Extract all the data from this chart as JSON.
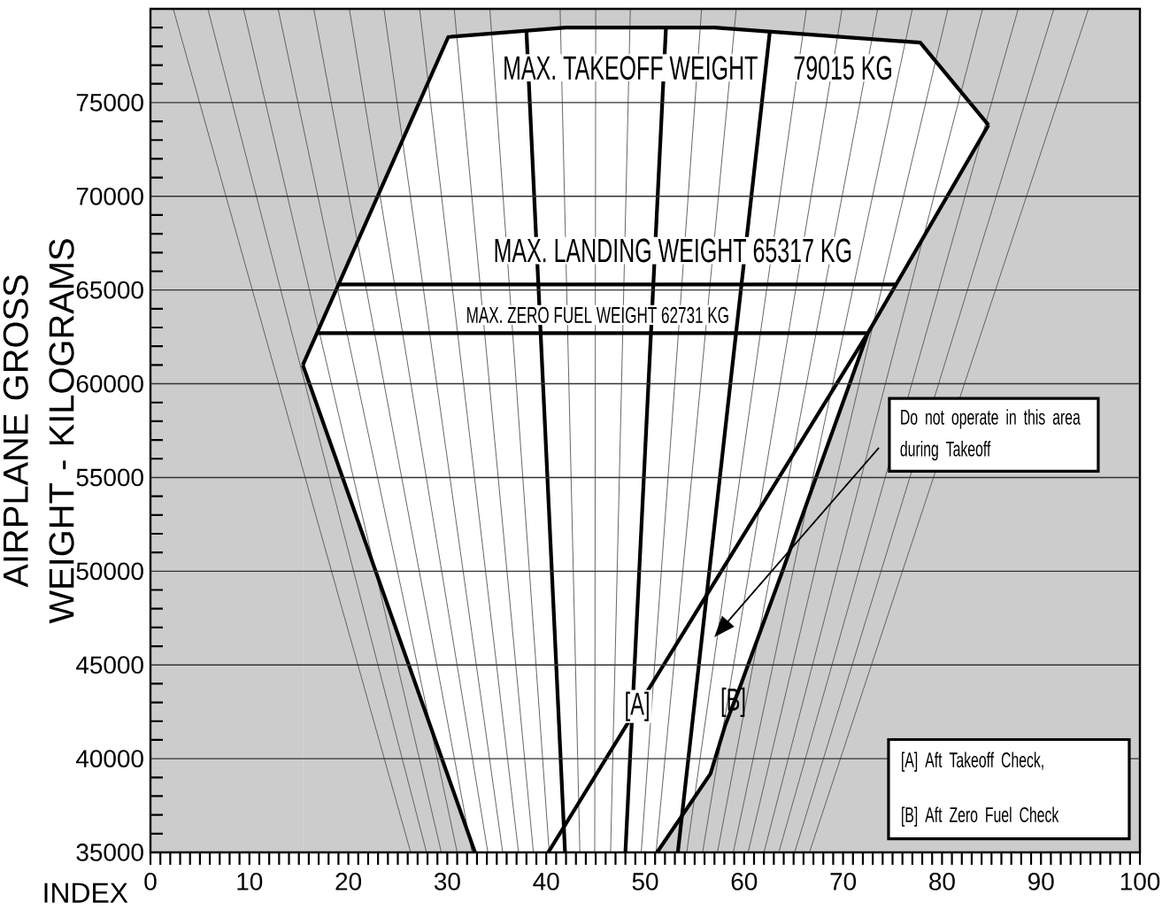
{
  "chart_data": {
    "type": "line",
    "xlabel": "INDEX",
    "ylabel": "AIRPLANE GROSS WEIGHT - KILOGRAMS",
    "xlim": [
      0,
      100
    ],
    "ylim": [
      35000,
      80000
    ],
    "xticks": [
      0,
      {
        "value": 1,
        "label": null
      },
      {
        "value": 2,
        "label": null
      },
      {
        "value": 3,
        "label": null
      },
      {
        "value": 4,
        "label": null
      },
      {
        "value": 5,
        "label": null
      },
      {
        "value": 6,
        "label": null
      },
      {
        "value": 7,
        "label": null
      },
      {
        "value": 8,
        "label": null
      },
      {
        "value": 9,
        "label": null
      },
      10,
      {
        "value": 11,
        "label": null
      },
      {
        "value": 12,
        "label": null
      },
      {
        "value": 13,
        "label": null
      },
      {
        "value": 14,
        "label": null
      },
      {
        "value": 15,
        "label": null
      },
      {
        "value": 16,
        "label": null
      },
      {
        "value": 17,
        "label": null
      },
      {
        "value": 18,
        "label": null
      },
      {
        "value": 19,
        "label": null
      },
      20,
      {
        "value": 21,
        "label": null
      },
      {
        "value": 22,
        "label": null
      },
      {
        "value": 23,
        "label": null
      },
      {
        "value": 24,
        "label": null
      },
      {
        "value": 25,
        "label": null
      },
      {
        "value": 26,
        "label": null
      },
      {
        "value": 27,
        "label": null
      },
      {
        "value": 28,
        "label": null
      },
      {
        "value": 29,
        "label": null
      },
      30,
      {
        "value": 31,
        "label": null
      },
      {
        "value": 32,
        "label": null
      },
      {
        "value": 33,
        "label": null
      },
      {
        "value": 34,
        "label": null
      },
      {
        "value": 35,
        "label": null
      },
      {
        "value": 36,
        "label": null
      },
      {
        "value": 37,
        "label": null
      },
      {
        "value": 38,
        "label": null
      },
      {
        "value": 39,
        "label": null
      },
      40,
      {
        "value": 41,
        "label": null
      },
      {
        "value": 42,
        "label": null
      },
      {
        "value": 43,
        "label": null
      },
      {
        "value": 44,
        "label": null
      },
      {
        "value": 45,
        "label": null
      },
      {
        "value": 46,
        "label": null
      },
      {
        "value": 47,
        "label": null
      },
      {
        "value": 48,
        "label": null
      },
      {
        "value": 49,
        "label": null
      },
      50,
      {
        "value": 51,
        "label": null
      },
      {
        "value": 52,
        "label": null
      },
      {
        "value": 53,
        "label": null
      },
      {
        "value": 54,
        "label": null
      },
      {
        "value": 55,
        "label": null
      },
      {
        "value": 56,
        "label": null
      },
      {
        "value": 57,
        "label": null
      },
      {
        "value": 58,
        "label": null
      },
      {
        "value": 59,
        "label": null
      },
      60,
      {
        "value": 61,
        "label": null
      },
      {
        "value": 62,
        "label": null
      },
      {
        "value": 63,
        "label": null
      },
      {
        "value": 64,
        "label": null
      },
      {
        "value": 65,
        "label": null
      },
      {
        "value": 66,
        "label": null
      },
      {
        "value": 67,
        "label": null
      },
      {
        "value": 68,
        "label": null
      },
      {
        "value": 69,
        "label": null
      },
      70,
      {
        "value": 71,
        "label": null
      },
      {
        "value": 72,
        "label": null
      },
      {
        "value": 73,
        "label": null
      },
      {
        "value": 74,
        "label": null
      },
      {
        "value": 75,
        "label": null
      },
      {
        "value": 76,
        "label": null
      },
      {
        "value": 77,
        "label": null
      },
      {
        "value": 78,
        "label": null
      },
      {
        "value": 79,
        "label": null
      },
      80,
      {
        "value": 81,
        "label": null
      },
      {
        "value": 82,
        "label": null
      },
      {
        "value": 83,
        "label": null
      },
      {
        "value": 84,
        "label": null
      },
      {
        "value": 85,
        "label": null
      },
      {
        "value": 86,
        "label": null
      },
      {
        "value": 87,
        "label": null
      },
      {
        "value": 88,
        "label": null
      },
      {
        "value": 89,
        "label": null
      },
      90,
      {
        "value": 91,
        "label": null
      },
      {
        "value": 92,
        "label": null
      },
      {
        "value": 93,
        "label": null
      },
      {
        "value": 94,
        "label": null
      },
      {
        "value": 95,
        "label": null
      },
      {
        "value": 96,
        "label": null
      },
      {
        "value": 97,
        "label": null
      },
      {
        "value": 98,
        "label": null
      },
      {
        "value": 99,
        "label": null
      },
      100
    ],
    "yticks": [
      35000,
      {
        "value": 36000,
        "label": null
      },
      {
        "value": 37000,
        "label": null
      },
      {
        "value": 38000,
        "label": null
      },
      {
        "value": 39000,
        "label": null
      },
      40000,
      {
        "value": 41000,
        "label": null
      },
      {
        "value": 42000,
        "label": null
      },
      {
        "value": 43000,
        "label": null
      },
      {
        "value": 44000,
        "label": null
      },
      45000,
      {
        "value": 46000,
        "label": null
      },
      {
        "value": 47000,
        "label": null
      },
      {
        "value": 48000,
        "label": null
      },
      {
        "value": 49000,
        "label": null
      },
      50000,
      {
        "value": 51000,
        "label": null
      },
      {
        "value": 52000,
        "label": null
      },
      {
        "value": 53000,
        "label": null
      },
      {
        "value": 54000,
        "label": null
      },
      55000,
      {
        "value": 56000,
        "label": null
      },
      {
        "value": 57000,
        "label": null
      },
      {
        "value": 58000,
        "label": null
      },
      {
        "value": 59000,
        "label": null
      },
      60000,
      {
        "value": 61000,
        "label": null
      },
      {
        "value": 62000,
        "label": null
      },
      {
        "value": 63000,
        "label": null
      },
      {
        "value": 64000,
        "label": null
      },
      65000,
      {
        "value": 66000,
        "label": null
      },
      {
        "value": 67000,
        "label": null
      },
      {
        "value": 68000,
        "label": null
      },
      {
        "value": 69000,
        "label": null
      },
      70000,
      {
        "value": 71000,
        "label": null
      },
      {
        "value": 72000,
        "label": null
      },
      {
        "value": 73000,
        "label": null
      },
      {
        "value": 74000,
        "label": null
      },
      75000,
      {
        "value": 76000,
        "label": null
      },
      {
        "value": 77000,
        "label": null
      },
      {
        "value": 78000,
        "label": null
      },
      {
        "value": 79000,
        "label": null
      }
    ],
    "grid": "y",
    "bands": [
      {
        "axis": "y",
        "from": 35000,
        "to": 80000,
        "color": "#cccccc"
      }
    ],
    "series": [
      {
        "type": "area",
        "color": "#ffffff",
        "x": [
          15.4,
          30.1,
          42.0,
          57.0,
          77.8,
          84.7
        ],
        "values": [
          61000,
          78500,
          79000,
          79000,
          78200,
          73800
        ]
      },
      {
        "type": "area",
        "color": "#cccccc",
        "x": [
          15.4,
          32.8
        ],
        "values": [
          61000,
          35000
        ]
      },
      {
        "type": "area",
        "color": "#cccccc",
        "x": [
          51.2,
          56.6,
          58.1,
          59.7,
          63.8,
          72.5,
          84.7
        ],
        "values": [
          35000,
          39200,
          41800,
          44000,
          49900,
          62700,
          73800
        ]
      },
      {
        "color": "#555555",
        "x": [
          2.3,
          26.3
        ],
        "values": [
          80000,
          35000
        ]
      },
      {
        "color": "#555555",
        "x": [
          5.8,
          27.9
        ],
        "values": [
          80000,
          35000
        ]
      },
      {
        "color": "#555555",
        "x": [
          9.4,
          29.4
        ],
        "values": [
          80000,
          35000
        ]
      },
      {
        "color": "#555555",
        "x": [
          12.9,
          31.0
        ],
        "values": [
          80000,
          35000
        ]
      },
      {
        "color": "#555555",
        "x": [
          16.5,
          32.5
        ],
        "values": [
          80000,
          35000
        ]
      },
      {
        "color": "#555555",
        "x": [
          20.1,
          34.1
        ],
        "values": [
          80000,
          35000
        ]
      },
      {
        "color": "#555555",
        "x": [
          23.6,
          35.6
        ],
        "values": [
          80000,
          35000
        ]
      },
      {
        "color": "#555555",
        "x": [
          27.2,
          37.2
        ],
        "values": [
          80000,
          35000
        ]
      },
      {
        "color": "#555555",
        "x": [
          30.7,
          38.7
        ],
        "values": [
          80000,
          35000
        ]
      },
      {
        "color": "#555555",
        "x": [
          34.3,
          40.3
        ],
        "values": [
          80000,
          35000
        ]
      },
      {
        "color": "#555555",
        "x": [
          41.4,
          43.4
        ],
        "values": [
          80000,
          35000
        ]
      },
      {
        "color": "#555555",
        "x": [
          45.0,
          44.9
        ],
        "values": [
          80000,
          35000
        ]
      },
      {
        "color": "#555555",
        "x": [
          48.5,
          46.5
        ],
        "values": [
          80000,
          35000
        ]
      },
      {
        "color": "#555555",
        "x": [
          55.7,
          49.6
        ],
        "values": [
          80000,
          35000
        ]
      },
      {
        "color": "#555555",
        "x": [
          59.2,
          51.1
        ],
        "values": [
          80000,
          35000
        ]
      },
      {
        "color": "#555555",
        "x": [
          66.3,
          54.2
        ],
        "values": [
          80000,
          35000
        ]
      },
      {
        "color": "#555555",
        "x": [
          69.9,
          55.8
        ],
        "values": [
          80000,
          35000
        ]
      },
      {
        "color": "#555555",
        "x": [
          73.5,
          57.3
        ],
        "values": [
          80000,
          35000
        ]
      },
      {
        "color": "#555555",
        "x": [
          77.0,
          58.9
        ],
        "values": [
          80000,
          35000
        ]
      },
      {
        "color": "#555555",
        "x": [
          80.6,
          60.4
        ],
        "values": [
          80000,
          35000
        ]
      },
      {
        "color": "#555555",
        "x": [
          84.1,
          62.0
        ],
        "values": [
          80000,
          35000
        ]
      },
      {
        "color": "#555555",
        "x": [
          87.7,
          63.5
        ],
        "values": [
          80000,
          35000
        ]
      },
      {
        "color": "#555555",
        "x": [
          91.3,
          65.1
        ],
        "values": [
          80000,
          35000
        ]
      },
      {
        "color": "#555555",
        "x": [
          94.8,
          66.6
        ],
        "values": [
          80000,
          35000
        ]
      },
      {
        "color": "#000000",
        "x": [
          38.0,
          41.9
        ],
        "values": [
          78800,
          35000
        ]
      },
      {
        "color": "#000000",
        "x": [
          52.1,
          48.0
        ],
        "values": [
          79000,
          35000
        ]
      },
      {
        "color": "#000000",
        "x": [
          62.6,
          53.3
        ],
        "values": [
          78800,
          35000
        ]
      },
      {
        "color": "#000000",
        "x": [
          19.0,
          75.3
        ],
        "values": [
          65300,
          65300
        ]
      },
      {
        "color": "#000000",
        "x": [
          16.9,
          72.5
        ],
        "values": [
          62700,
          62700
        ]
      },
      {
        "color": "#000000",
        "x": [
          40.2,
          72.5
        ],
        "values": [
          35000,
          62700
        ]
      }
    ],
    "annotations": [
      "MAX. TAKEOFF WEIGHT",
      "79015 KG",
      "MAX. LANDING WEIGHT 65317 KG",
      "MAX. ZERO FUEL WEIGHT 62731 KG",
      "[A]",
      "[B]",
      "Do not operate in this area during Takeoff",
      "[A] Aft Takeoff Check,",
      "[B] Aft Zero Fuel Check"
    ]
  }
}
